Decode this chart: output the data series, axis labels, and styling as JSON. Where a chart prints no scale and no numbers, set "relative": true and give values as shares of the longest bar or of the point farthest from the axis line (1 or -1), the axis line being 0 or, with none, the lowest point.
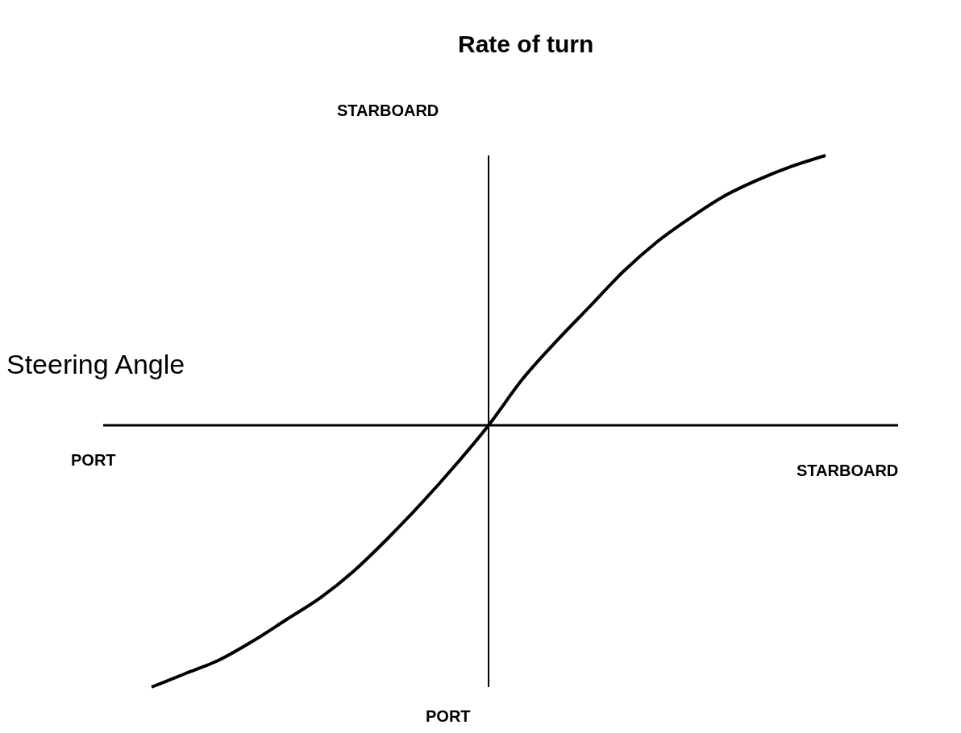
{
  "chart_data": {
    "type": "line",
    "relative": true,
    "ylabel": "Rate of turn",
    "xlabel": "Steering Angle",
    "categories": [
      null,
      null,
      null,
      null,
      null,
      null,
      null,
      null,
      null,
      null,
      null,
      null,
      null,
      null,
      null,
      null,
      null,
      null,
      null,
      null,
      null
    ],
    "series": [
      {
        "color": "#000000",
        "values": [
          -0.97,
          -0.92,
          -0.87,
          -0.8,
          -0.72,
          -0.64,
          -0.54,
          -0.42,
          -0.29,
          -0.15,
          0,
          0.17,
          0.31,
          0.44,
          0.57,
          0.68,
          0.77,
          0.85,
          0.91,
          0.96,
          1.0
        ]
      }
    ],
    "annotations": [
      "STARBOARD",
      "PORT",
      "PORT",
      "STARBOARD"
    ],
    "grid": false,
    "legend": false,
    "marker": "none",
    "line_style": "solid"
  }
}
